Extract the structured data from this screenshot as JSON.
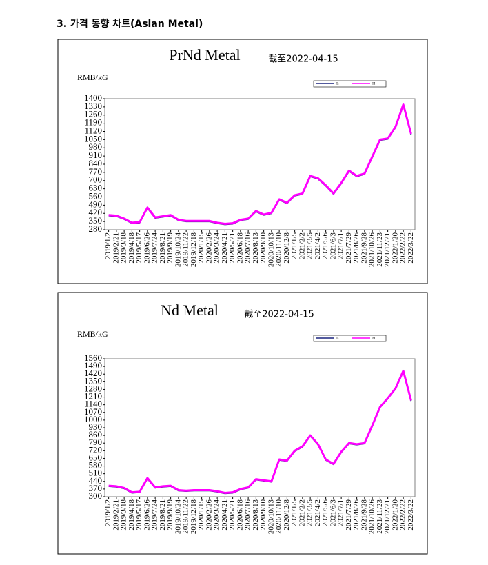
{
  "heading": "3. 가격 동향 차트(Asian Metal)",
  "chart_data": [
    {
      "type": "line",
      "title": "PrNd Metal",
      "subtitle": "截至2022-04-15",
      "y_label": "RMB/kG",
      "grid": false,
      "legend": "top-right",
      "categories": [
        "2019/1/2",
        "2019/2/21",
        "2019/3/18",
        "2019/4/18",
        "2019/5/17",
        "2019/6/26",
        "2019/7/24",
        "2019/8/21",
        "2019/9/19",
        "2019/10/24",
        "2019/11/22",
        "2019/12/18",
        "2020/1/15",
        "2020/2/26",
        "2020/3/24",
        "2020/4/21",
        "2020/5/21",
        "2020/6/18",
        "2020/7/16",
        "2020/8/13",
        "2020/9/10",
        "2020/10/13",
        "2020/11/10",
        "2020/12/8",
        "2021/1/5",
        "2021/2/2",
        "2021/3/5",
        "2021/4/2",
        "2021/5/6",
        "2021/6/3",
        "2021/7/1",
        "2021/7/29",
        "2021/8/26",
        "2021/9/28",
        "2021/10/26",
        "2021/11/23",
        "2021/12/21",
        "2022/1/20",
        "2022/2/22",
        "2022/3/22"
      ],
      "series": [
        {
          "name": "L",
          "color": "#1a237e",
          "values": [
            400,
            395,
            370,
            335,
            340,
            465,
            380,
            390,
            400,
            360,
            350,
            350,
            350,
            350,
            335,
            325,
            330,
            360,
            370,
            435,
            405,
            420,
            535,
            505,
            570,
            585,
            735,
            715,
            655,
            585,
            675,
            780,
            735,
            755,
            900,
            1045,
            1055,
            1155,
            1345,
            1095
          ]
        },
        {
          "name": "H",
          "color": "#ff00ff",
          "values": [
            405,
            400,
            375,
            340,
            345,
            470,
            385,
            395,
            405,
            365,
            355,
            355,
            355,
            355,
            340,
            330,
            335,
            365,
            375,
            440,
            410,
            425,
            540,
            510,
            575,
            590,
            740,
            720,
            660,
            590,
            680,
            785,
            740,
            760,
            905,
            1050,
            1060,
            1160,
            1350,
            1100
          ]
        }
      ],
      "ylim": [
        280,
        1400
      ],
      "yticks": [
        280,
        350,
        420,
        490,
        560,
        630,
        700,
        770,
        840,
        910,
        980,
        1050,
        1120,
        1190,
        1260,
        1330,
        1400
      ]
    },
    {
      "type": "line",
      "title": "Nd Metal",
      "subtitle": "截至2022-04-15",
      "y_label": "RMB/kG",
      "grid": false,
      "legend": "top-right",
      "categories": [
        "2019/1/2",
        "2019/2/21",
        "2019/3/18",
        "2019/4/18",
        "2019/5/17",
        "2019/6/26",
        "2019/7/24",
        "2019/8/21",
        "2019/9/19",
        "2019/10/24",
        "2019/11/22",
        "2019/12/18",
        "2020/1/15",
        "2020/2/26",
        "2020/3/24",
        "2020/4/21",
        "2020/5/21",
        "2020/6/18",
        "2020/7/16",
        "2020/8/13",
        "2020/9/10",
        "2020/10/13",
        "2020/11/10",
        "2020/12/8",
        "2021/1/5",
        "2021/2/2",
        "2021/3/5",
        "2021/4/2",
        "2021/5/6",
        "2021/6/3",
        "2021/7/1",
        "2021/7/29",
        "2021/8/26",
        "2021/9/28",
        "2021/10/26",
        "2021/11/23",
        "2021/12/21",
        "2022/1/20",
        "2022/2/22",
        "2022/3/22"
      ],
      "series": [
        {
          "name": "L",
          "color": "#1a237e",
          "values": [
            395,
            390,
            375,
            335,
            340,
            465,
            380,
            390,
            395,
            355,
            350,
            355,
            355,
            355,
            345,
            330,
            335,
            365,
            380,
            455,
            445,
            435,
            635,
            625,
            715,
            755,
            855,
            775,
            635,
            595,
            705,
            785,
            775,
            785,
            945,
            1115,
            1195,
            1285,
            1445,
            1175
          ]
        },
        {
          "name": "H",
          "color": "#ff00ff",
          "values": [
            400,
            395,
            380,
            340,
            345,
            470,
            385,
            395,
            400,
            360,
            355,
            360,
            360,
            360,
            350,
            335,
            340,
            370,
            385,
            460,
            450,
            440,
            640,
            630,
            720,
            760,
            860,
            780,
            640,
            600,
            710,
            790,
            780,
            790,
            950,
            1120,
            1200,
            1290,
            1450,
            1180
          ]
        }
      ],
      "ylim": [
        300,
        1560
      ],
      "yticks": [
        300,
        370,
        440,
        510,
        580,
        650,
        720,
        790,
        860,
        930,
        1000,
        1070,
        1140,
        1210,
        1280,
        1350,
        1420,
        1490,
        1560
      ]
    }
  ]
}
